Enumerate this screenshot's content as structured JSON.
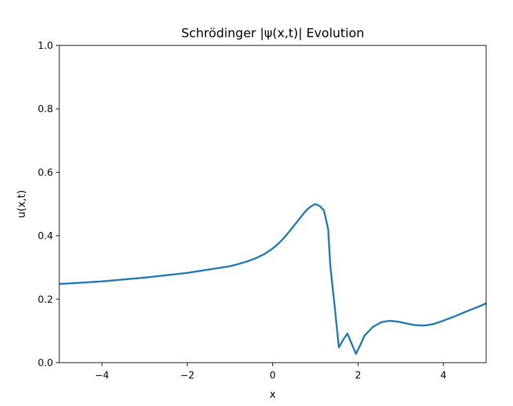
{
  "chart_data": {
    "type": "line",
    "title": "Schrödinger |ψ(x,t)| Evolution",
    "xlabel": "x",
    "ylabel": "u(x,t)",
    "xlim": [
      -5,
      5
    ],
    "ylim": [
      0,
      1
    ],
    "grid": false,
    "xticks": [
      -4,
      -2,
      0,
      2,
      4
    ],
    "xtick_labels": [
      "−4",
      "−2",
      "0",
      "2",
      "4"
    ],
    "yticks": [
      0,
      0.2,
      0.4,
      0.6,
      0.8,
      1.0
    ],
    "ytick_labels": [
      "0.0",
      "0.2",
      "0.4",
      "0.6",
      "0.8",
      "1.0"
    ],
    "line_color": "#1f77b4",
    "series": [
      {
        "x": [
          -5.0,
          -4.0,
          -3.0,
          -2.0,
          -1.0,
          -0.8,
          -0.6,
          -0.4,
          -0.2,
          0.0,
          0.1,
          0.2,
          0.3,
          0.4,
          0.5,
          0.6,
          0.7,
          0.8,
          0.9,
          1.0,
          1.1,
          1.2,
          1.3,
          1.35,
          1.45,
          1.55,
          1.65,
          1.75,
          1.85,
          1.95,
          2.05,
          2.15,
          2.35,
          2.55,
          2.75,
          2.95,
          3.15,
          3.35,
          3.55,
          3.75,
          3.95,
          4.25,
          4.55,
          4.85,
          5.0
        ],
        "y": [
          0.248,
          0.256,
          0.268,
          0.283,
          0.304,
          0.311,
          0.319,
          0.329,
          0.342,
          0.36,
          0.371,
          0.384,
          0.399,
          0.415,
          0.432,
          0.449,
          0.466,
          0.482,
          0.493,
          0.5,
          0.494,
          0.48,
          0.42,
          0.305,
          0.18,
          0.048,
          0.072,
          0.092,
          0.06,
          0.028,
          0.055,
          0.085,
          0.113,
          0.128,
          0.132,
          0.129,
          0.123,
          0.118,
          0.117,
          0.121,
          0.13,
          0.145,
          0.162,
          0.178,
          0.187
        ]
      }
    ]
  }
}
